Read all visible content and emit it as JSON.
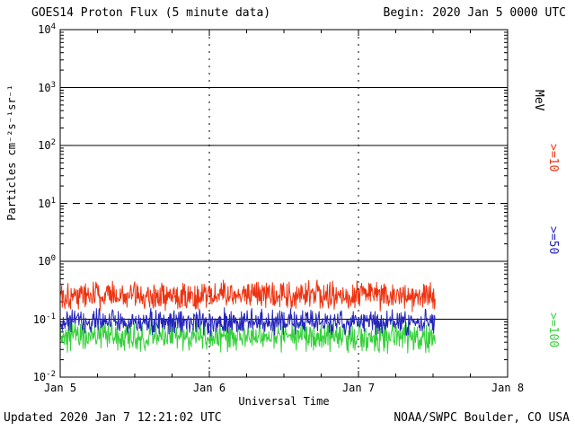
{
  "header": {
    "title": "GOES14 Proton Flux (5 minute data)",
    "begin": "Begin: 2020 Jan 5 0000 UTC"
  },
  "footer": {
    "updated": "Updated 2020 Jan 7 12:21:02 UTC",
    "credit": "NOAA/SWPC Boulder, CO USA"
  },
  "chart_data": {
    "type": "line",
    "title": "GOES14 Proton Flux (5 minute data)",
    "xlabel": "Universal Time",
    "ylabel": "Particles cm⁻²s⁻¹sr⁻¹",
    "right_axis_unit": "MeV",
    "x_tick_labels": [
      "Jan 5",
      "Jan 6",
      "Jan 7",
      "Jan 8"
    ],
    "x_range_days": 3,
    "y_scale": "log",
    "y_log_range": [
      -2,
      4
    ],
    "y_tick_exponents": [
      4,
      3,
      2,
      1,
      0,
      -1,
      -2
    ],
    "grid": {
      "hgrid_solid_exponents": [
        3,
        2,
        0,
        -1
      ],
      "hgrid_dashed_exponents": [
        1
      ],
      "vgrid_dotted_days": [
        1,
        2
      ]
    },
    "legend_position": "right",
    "series": [
      {
        "name": ">=10",
        "unit": "MeV",
        "color": "#ee3311",
        "baseline_flux": 0.26,
        "noise_log10": 0.3,
        "start_day": 0,
        "end_day": 2.515,
        "cadence_per_day": 288,
        "seed": 101
      },
      {
        "name": ">=50",
        "unit": "MeV",
        "color": "#2424bb",
        "baseline_flux": 0.09,
        "noise_log10": 0.25,
        "start_day": 0,
        "end_day": 2.515,
        "cadence_per_day": 288,
        "seed": 202
      },
      {
        "name": ">=100",
        "unit": "MeV",
        "color": "#35d03a",
        "baseline_flux": 0.05,
        "noise_log10": 0.3,
        "start_day": 0,
        "end_day": 2.515,
        "cadence_per_day": 288,
        "seed": 303
      }
    ]
  }
}
